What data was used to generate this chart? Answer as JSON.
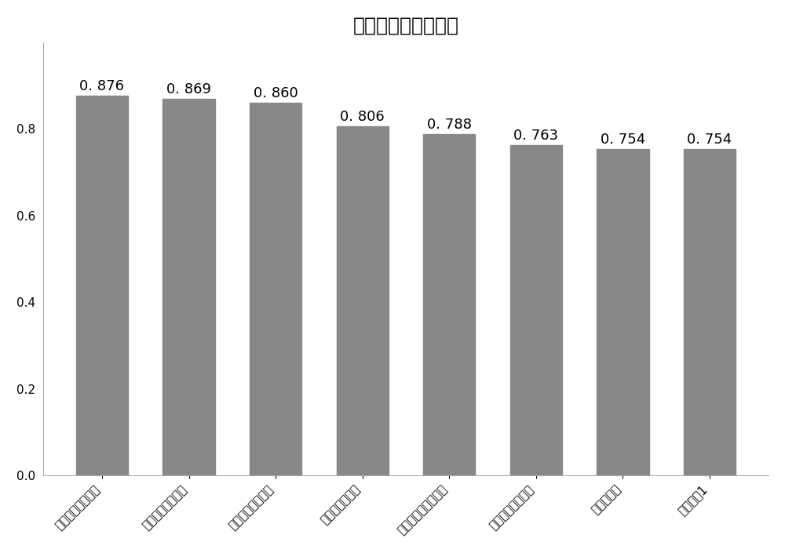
{
  "title": "特征变量及相关系数",
  "categories": [
    "齿轮箱输出轴轴温",
    "齿轮箱输入轴轴温",
    "齿轮箱油槽槽温度",
    "齿轮箱入口油温",
    "发电机定子绕组温度",
    "齿轮箱润滑油油压",
    "发电机转速",
    "叶轮转速1"
  ],
  "values": [
    0.876,
    0.869,
    0.86,
    0.806,
    0.788,
    0.763,
    0.754,
    0.754
  ],
  "bar_color": "#888888",
  "ylim": [
    0,
    1.0
  ],
  "yticks": [
    0.0,
    0.2,
    0.4,
    0.6,
    0.8
  ],
  "title_fontsize": 18,
  "label_fontsize": 11,
  "value_fontsize": 13,
  "background_color": "#ffffff",
  "tick_label_rotation": 45
}
